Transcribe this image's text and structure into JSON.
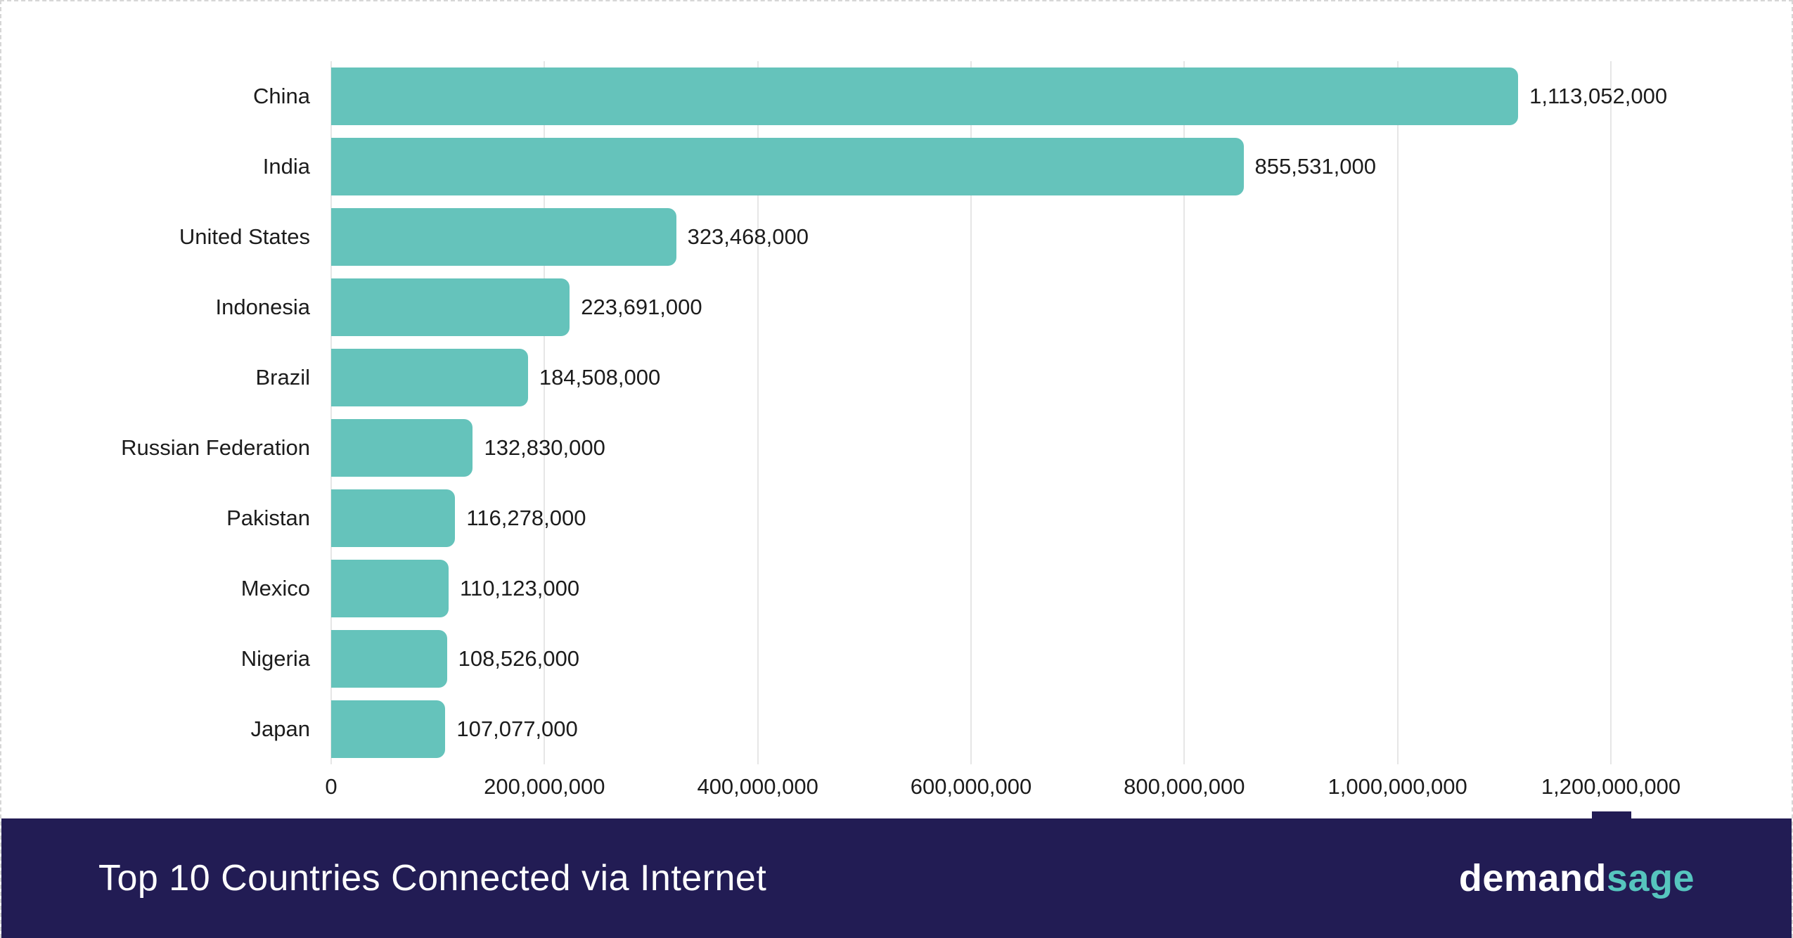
{
  "chart_data": {
    "type": "bar",
    "orientation": "horizontal",
    "title": "Top 10 Countries Connected via Internet",
    "categories": [
      "China",
      "India",
      "United States",
      "Indonesia",
      "Brazil",
      "Russian Federation",
      "Pakistan",
      "Mexico",
      "Nigeria",
      "Japan"
    ],
    "values": [
      1113052000,
      855531000,
      323468000,
      223691000,
      184508000,
      132830000,
      116278000,
      110123000,
      108526000,
      107077000
    ],
    "value_labels": [
      "1,113,052,000",
      "855,531,000",
      "323,468,000",
      "223,691,000",
      "184,508,000",
      "132,830,000",
      "116,278,000",
      "110,123,000",
      "108,526,000",
      "107,077,000"
    ],
    "x_ticks": [
      "0",
      "200,000,000",
      "400,000,000",
      "600,000,000",
      "800,000,000",
      "1,000,000,000",
      "1,200,000,000"
    ],
    "x_tick_values": [
      0,
      200000000,
      400000000,
      600000000,
      800000000,
      1000000000,
      1200000000
    ],
    "xlim": [
      0,
      1200000000
    ],
    "grid": true,
    "legend": "none",
    "bar_color": "#65c3bb"
  },
  "footer": {
    "title": "Top 10 Countries Connected via Internet",
    "brand": {
      "part1": "demand",
      "part2": "sage"
    },
    "bg_color": "#221c54",
    "accent_color": "#56c5be"
  }
}
